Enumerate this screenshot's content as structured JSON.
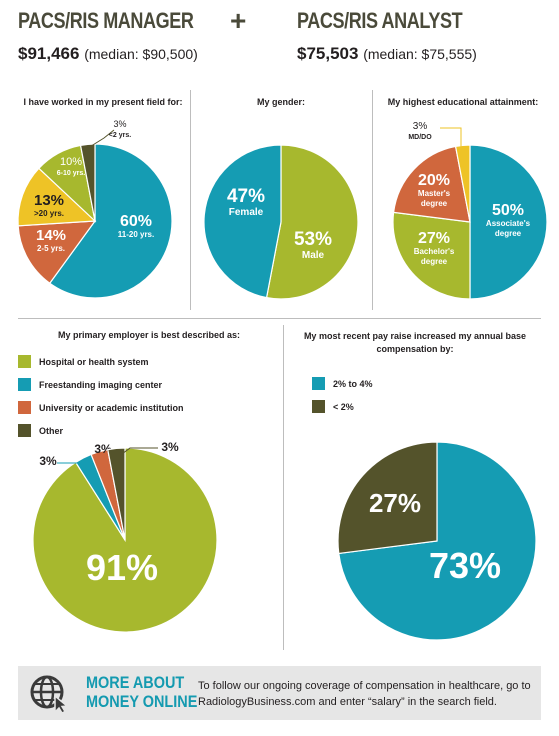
{
  "header": {
    "left_title": "PACS/RIS MANAGER",
    "left_salary": "$91,466",
    "left_median": "(median: $90,500)",
    "plus": "+",
    "right_title": "PACS/RIS ANALYST",
    "right_salary": "$75,503",
    "right_median": "(median: $75,555)"
  },
  "colors": {
    "green": "#a7b82e",
    "blue": "#159cb3",
    "orange": "#d0673d",
    "yellow": "#eec326",
    "dark": "#54532b"
  },
  "chart_data": [
    {
      "type": "pie",
      "title": "I have worked in my present field for:",
      "slices": [
        {
          "label": "11-20 yrs.",
          "value": 60,
          "pct": "60%",
          "color": "#159cb3"
        },
        {
          "label": "2-5 yrs.",
          "value": 14,
          "pct": "14%",
          "color": "#d0673d"
        },
        {
          "label": ">20 yrs.",
          "value": 13,
          "pct": "13%",
          "color": "#eec326"
        },
        {
          "label": "6-10 yrs.",
          "value": 10,
          "pct": "10%",
          "color": "#a7b82e"
        },
        {
          "label": "<2 yrs.",
          "value": 3,
          "pct": "3%",
          "color": "#54532b"
        }
      ]
    },
    {
      "type": "pie",
      "title": "My gender:",
      "slices": [
        {
          "label": "Male",
          "value": 53,
          "pct": "53%",
          "color": "#a7b82e"
        },
        {
          "label": "Female",
          "value": 47,
          "pct": "47%",
          "color": "#159cb3"
        }
      ]
    },
    {
      "type": "pie",
      "title": "My highest educational attainment:",
      "slices": [
        {
          "label": "Associate's degree",
          "value": 50,
          "pct": "50%",
          "color": "#159cb3"
        },
        {
          "label": "Bachelor's degree",
          "value": 27,
          "pct": "27%",
          "color": "#a7b82e"
        },
        {
          "label": "Master's degree",
          "value": 20,
          "pct": "20%",
          "color": "#d0673d"
        },
        {
          "label": "MD/DO",
          "value": 3,
          "pct": "3%",
          "color": "#eec326"
        }
      ]
    },
    {
      "type": "pie",
      "title": "My primary employer is best described as:",
      "legend": "top-left",
      "slices": [
        {
          "label": "Hospital or health system",
          "value": 91,
          "pct": "91%",
          "color": "#a7b82e"
        },
        {
          "label": "Freestanding imaging center",
          "value": 3,
          "pct": "3%",
          "color": "#159cb3"
        },
        {
          "label": "University or academic institution",
          "value": 3,
          "pct": "3%",
          "color": "#d0673d"
        },
        {
          "label": "Other",
          "value": 3,
          "pct": "3%",
          "color": "#54532b"
        }
      ]
    },
    {
      "type": "pie",
      "title": "My most recent pay raise increased my annual base compensation by:",
      "legend": "top-left",
      "slices": [
        {
          "label": "2% to 4%",
          "value": 73,
          "pct": "73%",
          "color": "#159cb3"
        },
        {
          "label": "< 2%",
          "value": 27,
          "pct": "27%",
          "color": "#54532b"
        }
      ]
    }
  ],
  "footer": {
    "icon": "globe-cursor-icon",
    "more_line1": "MORE ABOUT",
    "more_line2": "MONEY ONLINE",
    "text": "To follow our ongoing coverage of compensation in healthcare, go to RadiologyBusiness.com and enter “salary” in the search field."
  }
}
